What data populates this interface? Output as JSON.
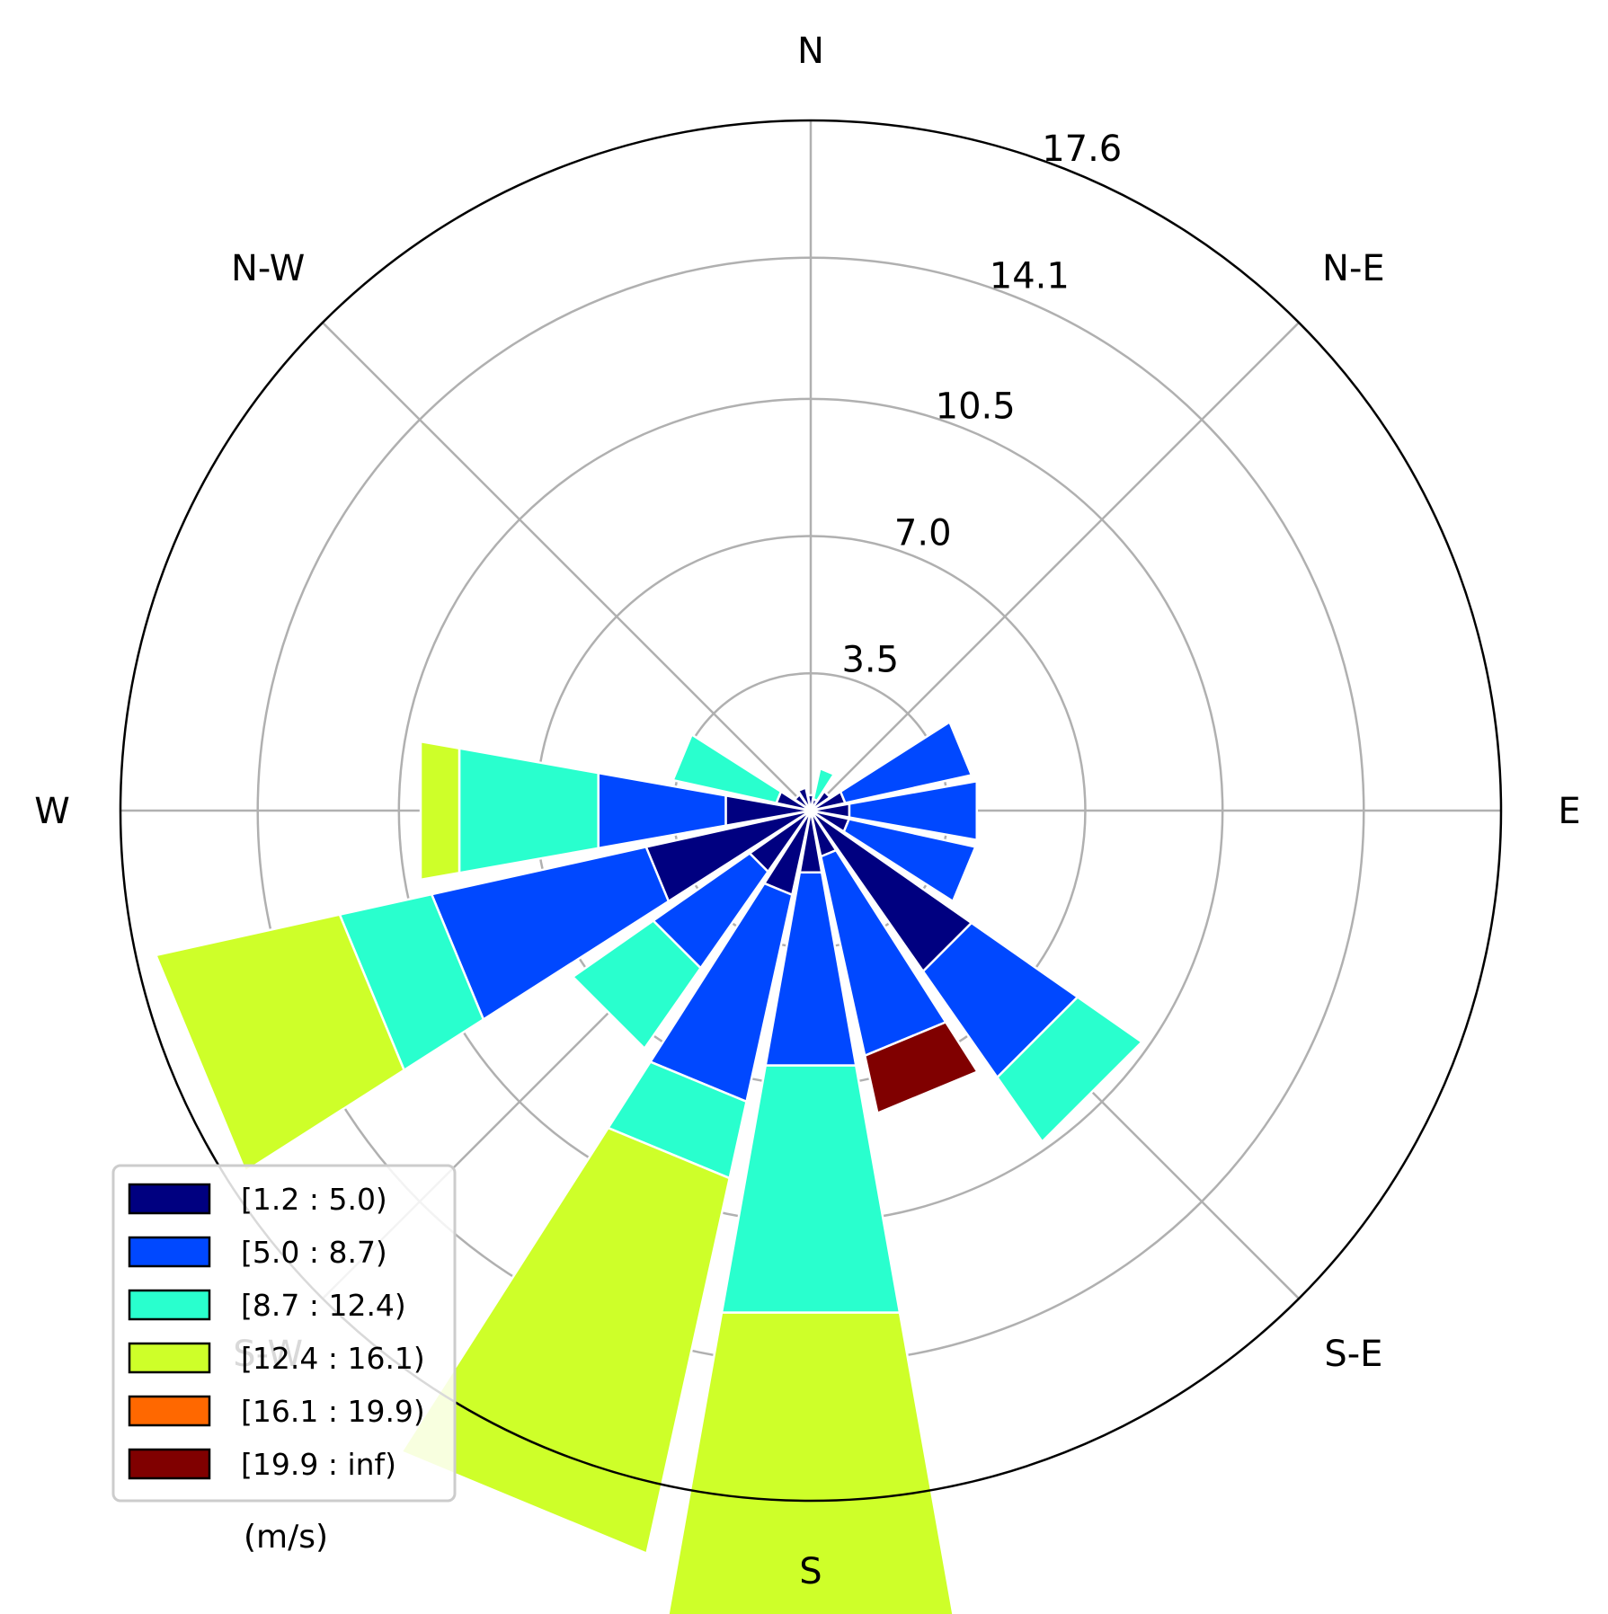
{
  "chart_data": {
    "type": "windrose",
    "directions": [
      "N",
      "NNE",
      "NE",
      "ENE",
      "E",
      "ESE",
      "SE",
      "SSE",
      "S",
      "SSW",
      "SW",
      "WSW",
      "W",
      "WNW",
      "NW",
      "NNW"
    ],
    "direction_angles_deg": [
      0,
      22.5,
      45,
      67.5,
      90,
      112.5,
      135,
      157.5,
      180,
      202.5,
      225,
      247.5,
      270,
      292.5,
      315,
      337.5
    ],
    "bins": [
      {
        "label": "[1.2 : 5.0)",
        "color": "#000080"
      },
      {
        "label": "[5.0 : 8.7)",
        "color": "#0048ff"
      },
      {
        "label": "[8.7 : 12.4)",
        "color": "#29ffce"
      },
      {
        "label": "[12.4 : 16.1)",
        "color": "#ceff29"
      },
      {
        "label": "[16.1 : 19.9)",
        "color": "#ff6800"
      },
      {
        "label": "[19.9 : inf)",
        "color": "#800000"
      }
    ],
    "stacked_values": [
      [
        0.4,
        0,
        0,
        0,
        0,
        0
      ],
      [
        0.3,
        0,
        0.8,
        0,
        0,
        0
      ],
      [
        0.6,
        0,
        0,
        0,
        0,
        0
      ],
      [
        0.9,
        3.3,
        0,
        0,
        0,
        0
      ],
      [
        1.0,
        3.3,
        0,
        0,
        0,
        0
      ],
      [
        1.0,
        3.3,
        0,
        0,
        0,
        0
      ],
      [
        5.0,
        3.3,
        2.0,
        0,
        0,
        0
      ],
      [
        1.2,
        5.2,
        0,
        0,
        0,
        1.5
      ],
      [
        1.6,
        5.0,
        6.4,
        8.6,
        0,
        0
      ],
      [
        2.2,
        5.4,
        2.0,
        9.8,
        0,
        0
      ],
      [
        1.9,
        3.0,
        2.5,
        0,
        0,
        0
      ],
      [
        4.3,
        5.6,
        2.4,
        4.8,
        0,
        0
      ],
      [
        2.2,
        3.3,
        3.6,
        1.0,
        0,
        0
      ],
      [
        0.9,
        0,
        2.7,
        0,
        0,
        0
      ],
      [
        0.5,
        0,
        0,
        0,
        0,
        0
      ],
      [
        0.6,
        0,
        0,
        0,
        0,
        0
      ]
    ],
    "rlabels": [
      "3.5",
      "7.0",
      "10.5",
      "14.1",
      "17.6"
    ],
    "rticks": [
      3.5,
      7.0,
      10.5,
      14.1,
      17.6
    ],
    "rmax": 17.6,
    "cardinal_labels": [
      "N",
      "N-E",
      "E",
      "S-E",
      "S",
      "S-W",
      "W",
      "N-W"
    ],
    "legend_position": "lower-left",
    "units": "(m/s)",
    "grid": true
  }
}
